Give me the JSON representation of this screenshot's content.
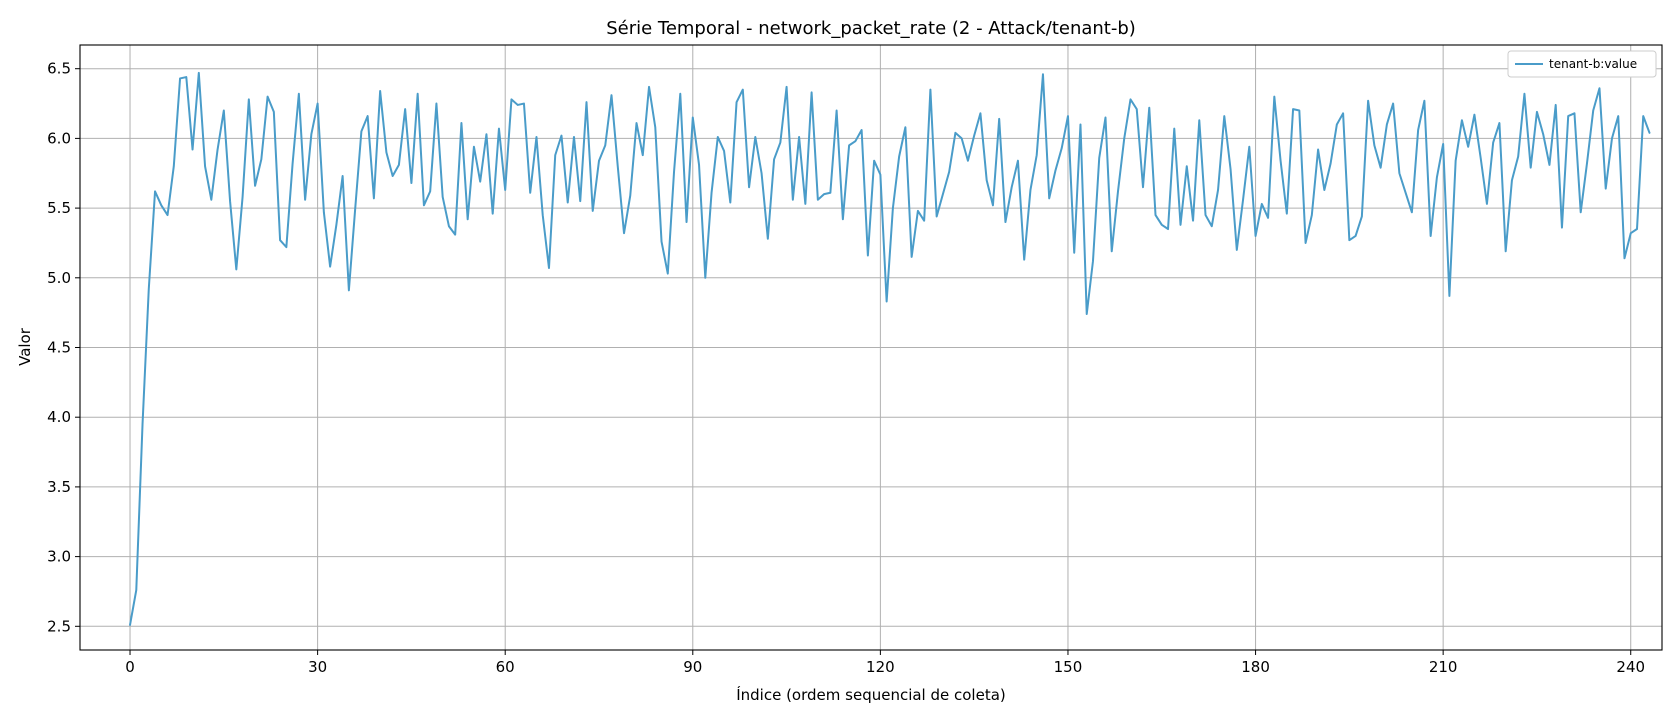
{
  "chart_data": {
    "type": "line",
    "title": "Série Temporal - network_packet_rate (2 - Attack/tenant-b)",
    "xlabel": "Índice (ordem sequencial de coleta)",
    "ylabel": "Valor",
    "xlim": [
      -8,
      245
    ],
    "ylim": [
      2.33,
      6.67
    ],
    "xticks": [
      0,
      30,
      60,
      90,
      120,
      150,
      180,
      210,
      240
    ],
    "xtick_labels": [
      "0",
      "30",
      "60",
      "90",
      "120",
      "150",
      "180",
      "210",
      "240"
    ],
    "yticks": [
      2.5,
      3.0,
      3.5,
      4.0,
      4.5,
      5.0,
      5.5,
      6.0,
      6.5
    ],
    "ytick_labels": [
      "2.5",
      "3.0",
      "3.5",
      "4.0",
      "4.5",
      "5.0",
      "5.5",
      "6.0",
      "6.5"
    ],
    "grid": true,
    "legend_position": "top-right",
    "series": [
      {
        "name": "tenant-b:value",
        "color": "#4a9cc9",
        "values": [
          2.51,
          2.76,
          3.95,
          4.92,
          5.62,
          5.52,
          5.45,
          5.8,
          6.43,
          6.44,
          5.92,
          6.47,
          5.8,
          5.56,
          5.92,
          6.2,
          5.55,
          5.06,
          5.58,
          6.28,
          5.66,
          5.85,
          6.3,
          6.19,
          5.27,
          5.22,
          5.82,
          6.32,
          5.56,
          6.03,
          6.25,
          5.47,
          5.08,
          5.38,
          5.73,
          4.91,
          5.49,
          6.05,
          6.16,
          5.57,
          6.34,
          5.9,
          5.73,
          5.81,
          6.21,
          5.68,
          6.32,
          5.52,
          5.62,
          6.25,
          5.58,
          5.37,
          5.31,
          6.11,
          5.42,
          5.94,
          5.69,
          6.03,
          5.46,
          6.07,
          5.63,
          6.28,
          6.24,
          6.25,
          5.61,
          6.01,
          5.45,
          5.07,
          5.88,
          6.02,
          5.54,
          6.01,
          5.55,
          6.26,
          5.48,
          5.84,
          5.95,
          6.31,
          5.8,
          5.32,
          5.59,
          6.11,
          5.88,
          6.37,
          6.08,
          5.26,
          5.03,
          5.76,
          6.32,
          5.4,
          6.15,
          5.81,
          5.0,
          5.61,
          6.01,
          5.91,
          5.54,
          6.26,
          6.35,
          5.65,
          6.01,
          5.75,
          5.28,
          5.85,
          5.97,
          6.37,
          5.56,
          6.01,
          5.53,
          6.33,
          5.56,
          5.6,
          5.61,
          6.2,
          5.42,
          5.95,
          5.98,
          6.06,
          5.16,
          5.84,
          5.74,
          4.83,
          5.5,
          5.87,
          6.08,
          5.15,
          5.48,
          5.41,
          6.35,
          5.44,
          5.6,
          5.76,
          6.04,
          6.0,
          5.84,
          6.02,
          6.18,
          5.7,
          5.52,
          6.14,
          5.4,
          5.65,
          5.84,
          5.13,
          5.63,
          5.88,
          6.46,
          5.57,
          5.77,
          5.93,
          6.16,
          5.18,
          6.1,
          4.74,
          5.12,
          5.86,
          6.15,
          5.19,
          5.62,
          6.0,
          6.28,
          6.21,
          5.65,
          6.22,
          5.45,
          5.38,
          5.35,
          6.07,
          5.38,
          5.8,
          5.41,
          6.13,
          5.45,
          5.37,
          5.63,
          6.16,
          5.78,
          5.2,
          5.56,
          5.94,
          5.3,
          5.53,
          5.43,
          6.3,
          5.84,
          5.46,
          6.21,
          6.2,
          5.25,
          5.45,
          5.92,
          5.63,
          5.82,
          6.1,
          6.18,
          5.27,
          5.3,
          5.44,
          6.27,
          5.95,
          5.79,
          6.1,
          6.25,
          5.75,
          5.61,
          5.47,
          6.06,
          6.27,
          5.3,
          5.72,
          5.96,
          4.87,
          5.84,
          6.13,
          5.94,
          6.17,
          5.86,
          5.53,
          5.97,
          6.11,
          5.19,
          5.7,
          5.87,
          6.32,
          5.79,
          6.19,
          6.03,
          5.81,
          6.24,
          5.36,
          6.16,
          6.18,
          5.47,
          5.82,
          6.2,
          6.36,
          5.64,
          6.0,
          6.16,
          5.14,
          5.32,
          5.35,
          6.16,
          6.04
        ]
      }
    ]
  }
}
